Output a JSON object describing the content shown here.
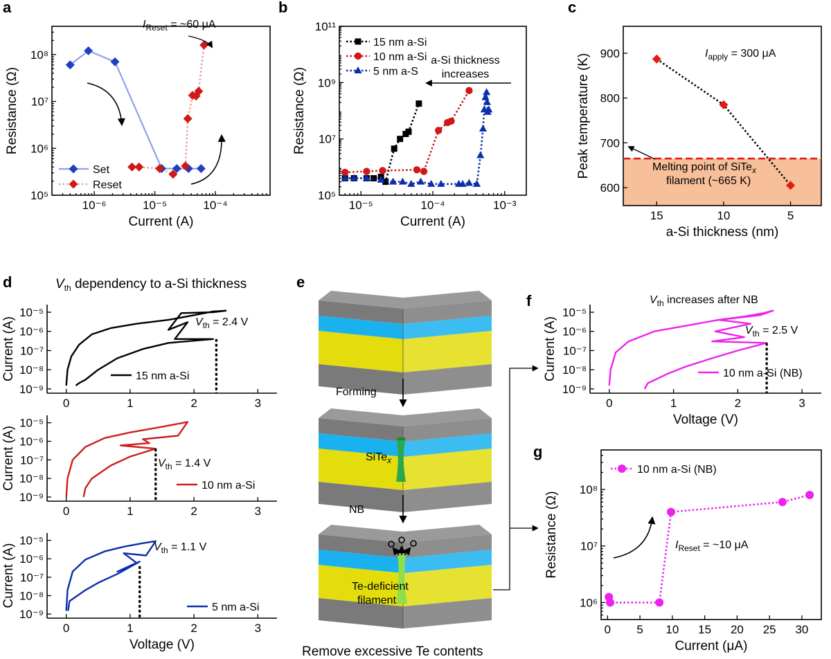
{
  "panels": {
    "a": "a",
    "b": "b",
    "c": "c",
    "d": "d",
    "e": "e",
    "f": "f",
    "g": "g"
  },
  "colors": {
    "blue": "#1f3fbf",
    "blue_light": "#8fa0f0",
    "red": "#d01818",
    "red_light": "#f0a0a0",
    "crimson": "#cc1f1f",
    "magenta": "#ee22ee",
    "navy": "#0b2eab",
    "orange_fill": "#f7c09a",
    "layer_gray": "#7a7a7a",
    "layer_cyan": "#1ab2ee",
    "layer_yellow": "#e3dd0e",
    "filament_green": "#2aa84a"
  },
  "chart_data": [
    {
      "id": "a",
      "type": "line",
      "xscale": "log",
      "yscale": "log",
      "xlim": [
        2e-07,
        0.0008
      ],
      "ylim": [
        100000.0,
        400000000.0
      ],
      "xlabel": "Current (A)",
      "ylabel": "Resistance (Ω)",
      "xticks": [
        {
          "v": 1e-06,
          "label": "10⁻⁶"
        },
        {
          "v": 1e-05,
          "label": "10⁻⁵"
        },
        {
          "v": 0.0001,
          "label": "10⁻⁴"
        }
      ],
      "yticks": [
        {
          "v": 100000.0,
          "label": "10⁵"
        },
        {
          "v": 1000000.0,
          "label": "10⁶"
        },
        {
          "v": 10000000.0,
          "label": "10⁷"
        },
        {
          "v": 100000000.0,
          "label": "10⁸"
        }
      ],
      "annotation": {
        "prefix": "I",
        "sub": "Reset",
        "text": " = ~60 μA"
      },
      "legend": [
        {
          "name": "Set"
        },
        {
          "name": "Reset"
        }
      ],
      "series": [
        {
          "name": "Set",
          "x": [
            4e-07,
            8e-07,
            2.2e-06,
            1.3e-05,
            2.3e-05,
            3.6e-05,
            5.8e-05
          ],
          "y": [
            60000000.0,
            120000000.0,
            70000000.0,
            370000.0,
            370000.0,
            370000.0,
            370000.0
          ]
        },
        {
          "name": "Reset",
          "x": [
            4.2e-06,
            5.5e-06,
            1.2e-05,
            2e-05,
            3.2e-05,
            3.5e-05,
            4.2e-05,
            4.8e-05,
            5.3e-05,
            6.5e-05
          ],
          "y": [
            400000.0,
            400000.0,
            370000.0,
            280000.0,
            420000.0,
            4300000.0,
            13500000.0,
            13000000.0,
            16500000.0,
            160000000.0
          ]
        }
      ]
    },
    {
      "id": "b",
      "type": "scatter",
      "xscale": "log",
      "yscale": "log",
      "xlim": [
        5e-06,
        0.002
      ],
      "ylim": [
        100000.0,
        100000000000.0
      ],
      "xlabel": "Current (A)",
      "ylabel": "Resistance (Ω)",
      "xticks": [
        {
          "v": 1e-05,
          "label": "10⁻⁵"
        },
        {
          "v": 0.0001,
          "label": "10⁻⁴"
        },
        {
          "v": 0.001,
          "label": "10⁻³"
        }
      ],
      "yticks": [
        {
          "v": 100000.0,
          "label": "10⁵"
        },
        {
          "v": 10000000.0,
          "label": "10⁷"
        },
        {
          "v": 1000000000.0,
          "label": "10⁹"
        },
        {
          "v": 100000000000.0,
          "label": "10¹¹"
        }
      ],
      "annotation": [
        "a-Si thickness",
        "increases"
      ],
      "series": [
        {
          "name": "15 nm a-Si",
          "x": [
            6e-06,
            8e-06,
            1.2e-05,
            1.5e-05,
            1.9e-05,
            2.2e-05,
            2.9e-05,
            3.5e-05,
            4.2e-05,
            4.6e-05,
            6.4e-05
          ],
          "y": [
            400000.0,
            400000.0,
            400000.0,
            400000.0,
            450000.0,
            300000.0,
            4500000.0,
            10000000.0,
            15000000.0,
            18000000.0,
            180000000.0
          ]
        },
        {
          "name": "10 nm a-Si",
          "x": [
            6e-06,
            1.2e-05,
            2e-05,
            6e-05,
            7.5e-05,
            0.00012,
            0.00016,
            0.00018,
            0.00032
          ],
          "y": [
            650000.0,
            700000.0,
            750000.0,
            800000.0,
            700000.0,
            20000000.0,
            38000000.0,
            43000000.0,
            520000000.0
          ]
        },
        {
          "name": "5 nm a-S",
          "x": [
            6e-06,
            8e-06,
            1.2e-05,
            1.9e-05,
            2.8e-05,
            3.8e-05,
            5e-05,
            6.8e-05,
            9.5e-05,
            0.00013,
            0.00023,
            0.00026,
            0.00032,
            0.00041,
            0.00046,
            0.0005,
            0.00052,
            0.00054,
            0.00056,
            0.00057,
            0.00058,
            0.0006
          ],
          "y": [
            400000.0,
            400000.0,
            400000.0,
            350000.0,
            300000.0,
            300000.0,
            250000.0,
            300000.0,
            250000.0,
            250000.0,
            250000.0,
            250000.0,
            270000.0,
            250000.0,
            2600000.0,
            23000000.0,
            110000000.0,
            300000000.0,
            450000000.0,
            200000000.0,
            90000000.0,
            110000000.0
          ]
        }
      ]
    },
    {
      "id": "c",
      "type": "line",
      "xlim": [
        17.5,
        2.7
      ],
      "ylim": [
        560,
        960
      ],
      "xlabel": "a-Si thickness (nm)",
      "ylabel": "Peak temperature (K)",
      "xticks": [
        {
          "v": 15,
          "label": "15"
        },
        {
          "v": 10,
          "label": "10"
        },
        {
          "v": 5,
          "label": "5"
        }
      ],
      "yticks": [
        {
          "v": 600,
          "label": "600"
        },
        {
          "v": 700,
          "label": "700"
        },
        {
          "v": 800,
          "label": "800"
        },
        {
          "v": 900,
          "label": "900"
        }
      ],
      "melting_point": 665,
      "annotation": {
        "prefix": "I",
        "sub": "apply",
        "text": " = 300 μA"
      },
      "melting_label": [
        "Melting point of SiTe",
        "x",
        "filament (~665 K)"
      ],
      "series": [
        {
          "name": "Peak temperature",
          "x": [
            15,
            10,
            5
          ],
          "y": [
            887,
            785,
            605
          ]
        }
      ]
    },
    {
      "id": "d",
      "type": "line",
      "yscale": "log",
      "title": {
        "prefix": "V",
        "sub": "th",
        "text": " dependency to a-Si thickness"
      },
      "xlabel": "Voltage (V)",
      "ylabel": "Current (A)",
      "xlim": [
        -0.3,
        3.3
      ],
      "ylim": [
        6e-10,
        2.5e-05
      ],
      "xticks": [
        {
          "v": 0,
          "label": "0"
        },
        {
          "v": 1,
          "label": "1"
        },
        {
          "v": 2,
          "label": "2"
        },
        {
          "v": 3,
          "label": "3"
        }
      ],
      "yticks": [
        {
          "v": 1e-09,
          "label": "10⁻⁹"
        },
        {
          "v": 1e-08,
          "label": "10⁻⁸"
        },
        {
          "v": 1e-07,
          "label": "10⁻⁷"
        },
        {
          "v": 1e-06,
          "label": "10⁻⁶"
        },
        {
          "v": 1e-05,
          "label": "10⁻⁵"
        }
      ],
      "subplots": [
        {
          "name": "15 nm a-Si",
          "vth": 2.35,
          "vth_label": " = 2.4 V",
          "x": [
            0,
            0.02,
            0.08,
            0.2,
            0.4,
            0.7,
            1.1,
            1.6,
            2.0,
            2.3,
            2.5,
            2.3,
            1.8,
            1.6,
            1.9,
            1.7,
            2.3,
            1.6,
            1.2,
            0.8,
            0.5,
            0.3,
            0.2,
            0.15
          ],
          "y": [
            1.5e-09,
            1e-08,
            5e-08,
            2e-07,
            7e-07,
            1.5e-06,
            2.5e-06,
            4e-06,
            7e-06,
            1.1e-05,
            1.2e-05,
            1e-05,
            9e-06,
            1.2e-06,
            3e-06,
            4e-07,
            4e-07,
            2.5e-07,
            1.2e-07,
            4e-08,
            1e-08,
            3e-09,
            2e-09,
            1.5e-09
          ]
        },
        {
          "name": "10 nm a-Si",
          "vth": 1.4,
          "vth_label": " = 1.4 V",
          "x": [
            0,
            0.02,
            0.1,
            0.3,
            0.6,
            1.0,
            1.5,
            1.9,
            1.75,
            1.2,
            1.3,
            0.85,
            1.4,
            1.0,
            0.7,
            0.4,
            0.3,
            0.27
          ],
          "y": [
            1e-09,
            1e-08,
            1e-07,
            5e-07,
            1.5e-06,
            3e-06,
            6e-06,
            1.1e-05,
            2e-06,
            1.3e-06,
            8e-07,
            6e-07,
            4e-07,
            1.5e-07,
            5e-08,
            1e-08,
            3e-09,
            1e-09
          ]
        },
        {
          "name": "5 nm a-Si",
          "vth": 1.15,
          "vth_label": " = 1.1 V",
          "x": [
            0,
            0.02,
            0.1,
            0.3,
            0.6,
            0.9,
            1.2,
            1.4,
            1.25,
            0.9,
            1.1,
            0.8,
            1.15,
            0.8,
            0.5,
            0.3,
            0.05,
            0.03
          ],
          "y": [
            1.5e-09,
            2e-08,
            2e-07,
            9e-07,
            2.5e-06,
            4.5e-06,
            7e-06,
            9e-06,
            1.5e-06,
            2e-06,
            6e-07,
            2e-07,
            7e-07,
            1.5e-07,
            5e-08,
            2e-08,
            5e-09,
            1.5e-09
          ]
        }
      ]
    },
    {
      "id": "f",
      "type": "line",
      "yscale": "log",
      "title": {
        "prefix": "V",
        "sub": "th",
        "text": " increases after NB"
      },
      "xlabel": "Voltage (V)",
      "ylabel": "Current (A)",
      "xlim": [
        -0.3,
        3.3
      ],
      "ylim": [
        6e-10,
        2.5e-05
      ],
      "xticks": [
        {
          "v": 0,
          "label": "0"
        },
        {
          "v": 1,
          "label": "1"
        },
        {
          "v": 2,
          "label": "2"
        },
        {
          "v": 3,
          "label": "3"
        }
      ],
      "yticks": [
        {
          "v": 1e-09,
          "label": "10⁻⁹"
        },
        {
          "v": 1e-08,
          "label": "10⁻⁸"
        },
        {
          "v": 1e-07,
          "label": "10⁻⁷"
        },
        {
          "v": 1e-06,
          "label": "10⁻⁶"
        },
        {
          "v": 1e-05,
          "label": "10⁻⁵"
        }
      ],
      "series": [
        {
          "name": "10 nm a-Si (NB)",
          "vth": 2.45,
          "vth_label": " = 2.5 V",
          "x": [
            0,
            0.02,
            0.1,
            0.3,
            0.7,
            1.2,
            1.7,
            2.1,
            2.4,
            2.55,
            2.35,
            1.7,
            2.2,
            1.65,
            2.1,
            1.6,
            2.45,
            2.0,
            1.6,
            1.2,
            0.9,
            0.6,
            0.55
          ],
          "y": [
            1.5e-09,
            1e-08,
            8e-08,
            3e-07,
            1e-06,
            2e-06,
            4e-06,
            6e-06,
            9e-06,
            1.2e-05,
            7e-06,
            4e-06,
            2.5e-06,
            1e-06,
            5e-07,
            3e-07,
            2.5e-07,
            1e-07,
            4e-08,
            1.5e-08,
            6e-09,
            2e-09,
            1e-09
          ]
        }
      ]
    },
    {
      "id": "g",
      "type": "line",
      "yscale": "log",
      "xlabel": "Current (μA)",
      "ylabel": "Resistance (Ω)",
      "xlim": [
        -1,
        33
      ],
      "ylim": [
        500000.0,
        500000000.0
      ],
      "xticks": [
        {
          "v": 0,
          "label": "0"
        },
        {
          "v": 5,
          "label": "5"
        },
        {
          "v": 10,
          "label": "10"
        },
        {
          "v": 15,
          "label": "15"
        },
        {
          "v": 20,
          "label": "20"
        },
        {
          "v": 25,
          "label": "25"
        },
        {
          "v": 30,
          "label": "30"
        }
      ],
      "yticks": [
        {
          "v": 1000000.0,
          "label": "10⁶"
        },
        {
          "v": 10000000.0,
          "label": "10⁷"
        },
        {
          "v": 100000000.0,
          "label": "10⁸"
        }
      ],
      "annotation": {
        "prefix": "I",
        "sub": "Reset",
        "text": " = ~10 μA"
      },
      "series": [
        {
          "name": "10 nm a-Si (NB)",
          "x": [
            0.2,
            0.4,
            8,
            9.8,
            27,
            31.2
          ],
          "y": [
            1250000.0,
            1000000.0,
            1000000.0,
            40000000.0,
            60000000.0,
            80000000.0
          ]
        }
      ]
    }
  ],
  "diagram_e": {
    "labels": {
      "forming": "Forming",
      "nb": "NB",
      "site": "SiTe",
      "site_sub": "x",
      "te1": "Te-deficient",
      "te2": "filament"
    },
    "caption": "Remove excessive Te contents"
  }
}
